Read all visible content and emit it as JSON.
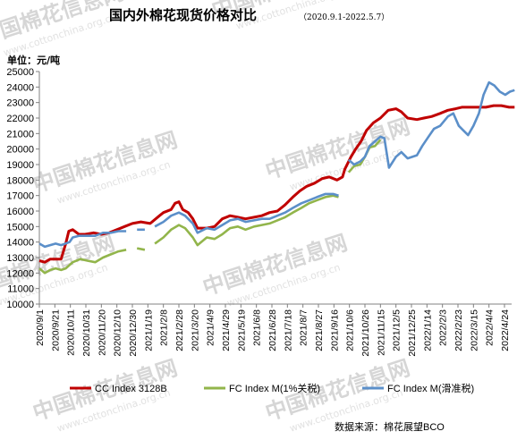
{
  "chart_data": {
    "type": "line",
    "title": "国内外棉花现货价格对比",
    "subtitle": "（2020.9.1-2022.5.7）",
    "unit_label": "单位：元/吨",
    "source": "数据来源：棉花展望BCO",
    "watermark_text": "中国棉花信息网",
    "watermark_url": "www.cottonchina.org.cn",
    "ylim": [
      10000,
      25000
    ],
    "y_ticks": [
      10000,
      11000,
      12000,
      13000,
      14000,
      15000,
      16000,
      17000,
      18000,
      19000,
      20000,
      21000,
      22000,
      23000,
      24000,
      25000
    ],
    "x_tick_labels": [
      "2020/9/1",
      "2020/9/21",
      "2020/10/11",
      "2020/10/31",
      "2020/11/20",
      "2020/12/10",
      "2020/12/30",
      "2021/1/19",
      "2021/2/8",
      "2021/2/28",
      "2021/3/20",
      "2021/4/9",
      "2021/4/29",
      "2021/5/19",
      "2021/6/8",
      "2021/6/28",
      "2021/7/18",
      "2021/8/7",
      "2021/8/27",
      "2021/9/16",
      "2021/10/6",
      "2021/10/26",
      "2021/11/15",
      "2021/12/5",
      "2021/12/25",
      "2022/1/14",
      "2022/2/3",
      "2022/2/23",
      "2022/3/15",
      "2022/4/4",
      "2022/4/24"
    ],
    "grid": false,
    "legend_position": "bottom",
    "series": [
      {
        "name": "CC Index 3128B",
        "color": "#c00000",
        "points": [
          [
            "2020-09-01",
            12800
          ],
          [
            "2020-09-08",
            12700
          ],
          [
            "2020-09-15",
            12900
          ],
          [
            "2020-09-22",
            12900
          ],
          [
            "2020-09-29",
            12900
          ],
          [
            "2020-10-05",
            13900
          ],
          [
            "2020-10-09",
            14700
          ],
          [
            "2020-10-14",
            14800
          ],
          [
            "2020-10-22",
            14500
          ],
          [
            "2020-10-30",
            14500
          ],
          [
            "2020-11-10",
            14600
          ],
          [
            "2020-11-20",
            14500
          ],
          [
            "2020-11-30",
            14600
          ],
          [
            "2020-12-10",
            14800
          ],
          [
            "2020-12-20",
            15000
          ],
          [
            "2020-12-30",
            15200
          ],
          [
            "2021-01-10",
            15300
          ],
          [
            "2021-01-22",
            15200
          ],
          [
            "2021-02-03",
            15700
          ],
          [
            "2021-02-08",
            15900
          ],
          [
            "2021-02-18",
            16100
          ],
          [
            "2021-02-23",
            16500
          ],
          [
            "2021-02-28",
            16600
          ],
          [
            "2021-03-05",
            16100
          ],
          [
            "2021-03-12",
            15900
          ],
          [
            "2021-03-18",
            15500
          ],
          [
            "2021-03-24",
            14900
          ],
          [
            "2021-04-05",
            14900
          ],
          [
            "2021-04-15",
            15000
          ],
          [
            "2021-04-25",
            15500
          ],
          [
            "2021-05-05",
            15700
          ],
          [
            "2021-05-15",
            15600
          ],
          [
            "2021-05-25",
            15500
          ],
          [
            "2021-06-05",
            15600
          ],
          [
            "2021-06-15",
            15700
          ],
          [
            "2021-06-25",
            15900
          ],
          [
            "2021-07-05",
            16000
          ],
          [
            "2021-07-15",
            16400
          ],
          [
            "2021-07-25",
            16900
          ],
          [
            "2021-08-03",
            17300
          ],
          [
            "2021-08-12",
            17600
          ],
          [
            "2021-08-22",
            17800
          ],
          [
            "2021-09-01",
            18100
          ],
          [
            "2021-09-10",
            18200
          ],
          [
            "2021-09-20",
            18000
          ],
          [
            "2021-09-27",
            18200
          ],
          [
            "2021-09-30",
            18700
          ],
          [
            "2021-10-08",
            19500
          ],
          [
            "2021-10-14",
            20000
          ],
          [
            "2021-10-21",
            20500
          ],
          [
            "2021-10-28",
            21200
          ],
          [
            "2021-11-06",
            21700
          ],
          [
            "2021-11-15",
            22000
          ],
          [
            "2021-11-25",
            22500
          ],
          [
            "2021-12-05",
            22600
          ],
          [
            "2021-12-12",
            22400
          ],
          [
            "2021-12-20",
            22000
          ],
          [
            "2022-01-01",
            21900
          ],
          [
            "2022-01-10",
            22000
          ],
          [
            "2022-01-20",
            22100
          ],
          [
            "2022-01-31",
            22300
          ],
          [
            "2022-02-10",
            22500
          ],
          [
            "2022-02-20",
            22600
          ],
          [
            "2022-02-28",
            22700
          ],
          [
            "2022-03-10",
            22700
          ],
          [
            "2022-03-20",
            22700
          ],
          [
            "2022-03-31",
            22700
          ],
          [
            "2022-04-10",
            22800
          ],
          [
            "2022-04-20",
            22800
          ],
          [
            "2022-04-30",
            22700
          ],
          [
            "2022-05-07",
            22700
          ]
        ]
      },
      {
        "name": "FC Index M(1%关税)",
        "color": "#92b54b",
        "points": [
          [
            "2020-09-01",
            12300
          ],
          [
            "2020-09-08",
            12000
          ],
          [
            "2020-09-15",
            12200
          ],
          [
            "2020-09-22",
            12300
          ],
          [
            "2020-09-29",
            12200
          ],
          [
            "2020-10-05",
            12300
          ],
          [
            "2020-10-14",
            12700
          ],
          [
            "2020-10-24",
            12900
          ],
          [
            "2020-11-02",
            12800
          ],
          [
            "2020-11-12",
            12700
          ],
          [
            "2020-11-22",
            13000
          ],
          [
            "2020-12-02",
            13200
          ],
          [
            "2020-12-12",
            13400
          ],
          [
            "2020-12-22",
            13500
          ],
          [
            "2021-01-05",
            13600
          ],
          [
            "2021-01-15",
            13500
          ],
          [
            "2021-01-28",
            13900
          ],
          [
            "2021-02-08",
            14300
          ],
          [
            "2021-02-18",
            14800
          ],
          [
            "2021-02-28",
            15100
          ],
          [
            "2021-03-08",
            14900
          ],
          [
            "2021-03-18",
            14300
          ],
          [
            "2021-03-24",
            13800
          ],
          [
            "2021-04-05",
            14300
          ],
          [
            "2021-04-15",
            14200
          ],
          [
            "2021-04-25",
            14500
          ],
          [
            "2021-05-05",
            14900
          ],
          [
            "2021-05-15",
            15000
          ],
          [
            "2021-05-25",
            14800
          ],
          [
            "2021-06-05",
            15000
          ],
          [
            "2021-06-15",
            15100
          ],
          [
            "2021-06-25",
            15200
          ],
          [
            "2021-07-05",
            15400
          ],
          [
            "2021-07-15",
            15600
          ],
          [
            "2021-07-25",
            15900
          ],
          [
            "2021-08-05",
            16200
          ],
          [
            "2021-08-15",
            16500
          ],
          [
            "2021-08-25",
            16700
          ],
          [
            "2021-09-05",
            16900
          ],
          [
            "2021-09-15",
            17000
          ],
          [
            "2021-09-22",
            16900
          ],
          [
            "2021-10-05",
            18500
          ],
          [
            "2021-10-12",
            18900
          ],
          [
            "2021-10-20",
            19000
          ],
          [
            "2021-10-26",
            19500
          ],
          [
            "2021-11-01",
            20100
          ],
          [
            "2021-11-08",
            20200
          ],
          [
            "2021-11-15",
            20600
          ]
        ]
      },
      {
        "name": "FC Index M(滑准税)",
        "color": "#5b8fc9",
        "points": [
          [
            "2020-09-01",
            13900
          ],
          [
            "2020-09-08",
            13700
          ],
          [
            "2020-09-15",
            13800
          ],
          [
            "2020-09-22",
            13900
          ],
          [
            "2020-09-29",
            13800
          ],
          [
            "2020-10-10",
            14000
          ],
          [
            "2020-10-14",
            14300
          ],
          [
            "2020-10-22",
            14400
          ],
          [
            "2020-11-01",
            14400
          ],
          [
            "2020-11-12",
            14400
          ],
          [
            "2020-11-22",
            14600
          ],
          [
            "2020-12-02",
            14600
          ],
          [
            "2020-12-12",
            14700
          ],
          [
            "2020-12-22",
            14700
          ],
          [
            "2021-01-05",
            14800
          ],
          [
            "2021-01-15",
            14800
          ],
          [
            "2021-01-28",
            15000
          ],
          [
            "2021-02-08",
            15300
          ],
          [
            "2021-02-18",
            15700
          ],
          [
            "2021-02-28",
            15900
          ],
          [
            "2021-03-08",
            15700
          ],
          [
            "2021-03-18",
            15200
          ],
          [
            "2021-03-24",
            14600
          ],
          [
            "2021-04-05",
            14900
          ],
          [
            "2021-04-15",
            14800
          ],
          [
            "2021-04-25",
            15100
          ],
          [
            "2021-05-05",
            15400
          ],
          [
            "2021-05-15",
            15500
          ],
          [
            "2021-05-25",
            15300
          ],
          [
            "2021-06-05",
            15400
          ],
          [
            "2021-06-15",
            15500
          ],
          [
            "2021-06-25",
            15500
          ],
          [
            "2021-07-05",
            15700
          ],
          [
            "2021-07-15",
            15900
          ],
          [
            "2021-07-25",
            16200
          ],
          [
            "2021-08-05",
            16500
          ],
          [
            "2021-08-15",
            16700
          ],
          [
            "2021-08-25",
            16900
          ],
          [
            "2021-09-05",
            17100
          ],
          [
            "2021-09-15",
            17100
          ],
          [
            "2021-09-22",
            17000
          ],
          [
            "2021-10-05",
            19300
          ],
          [
            "2021-10-12",
            19000
          ],
          [
            "2021-10-20",
            19200
          ],
          [
            "2021-10-26",
            19500
          ],
          [
            "2021-11-01",
            20200
          ],
          [
            "2021-11-08",
            20500
          ],
          [
            "2021-11-15",
            20800
          ],
          [
            "2021-11-20",
            20700
          ],
          [
            "2021-11-26",
            18800
          ],
          [
            "2021-12-05",
            19500
          ],
          [
            "2021-12-12",
            19800
          ],
          [
            "2021-12-20",
            19400
          ],
          [
            "2022-01-01",
            19600
          ],
          [
            "2022-01-08",
            20200
          ],
          [
            "2022-01-16",
            20800
          ],
          [
            "2022-01-23",
            21300
          ],
          [
            "2022-01-31",
            21500
          ],
          [
            "2022-02-10",
            22100
          ],
          [
            "2022-02-17",
            22300
          ],
          [
            "2022-02-24",
            21500
          ],
          [
            "2022-03-02",
            21200
          ],
          [
            "2022-03-08",
            20900
          ],
          [
            "2022-03-15",
            21500
          ],
          [
            "2022-03-22",
            22300
          ],
          [
            "2022-03-28",
            23500
          ],
          [
            "2022-04-04",
            24300
          ],
          [
            "2022-04-11",
            24100
          ],
          [
            "2022-04-18",
            23700
          ],
          [
            "2022-04-25",
            23500
          ],
          [
            "2022-05-01",
            23700
          ],
          [
            "2022-05-07",
            23800
          ]
        ]
      }
    ]
  }
}
